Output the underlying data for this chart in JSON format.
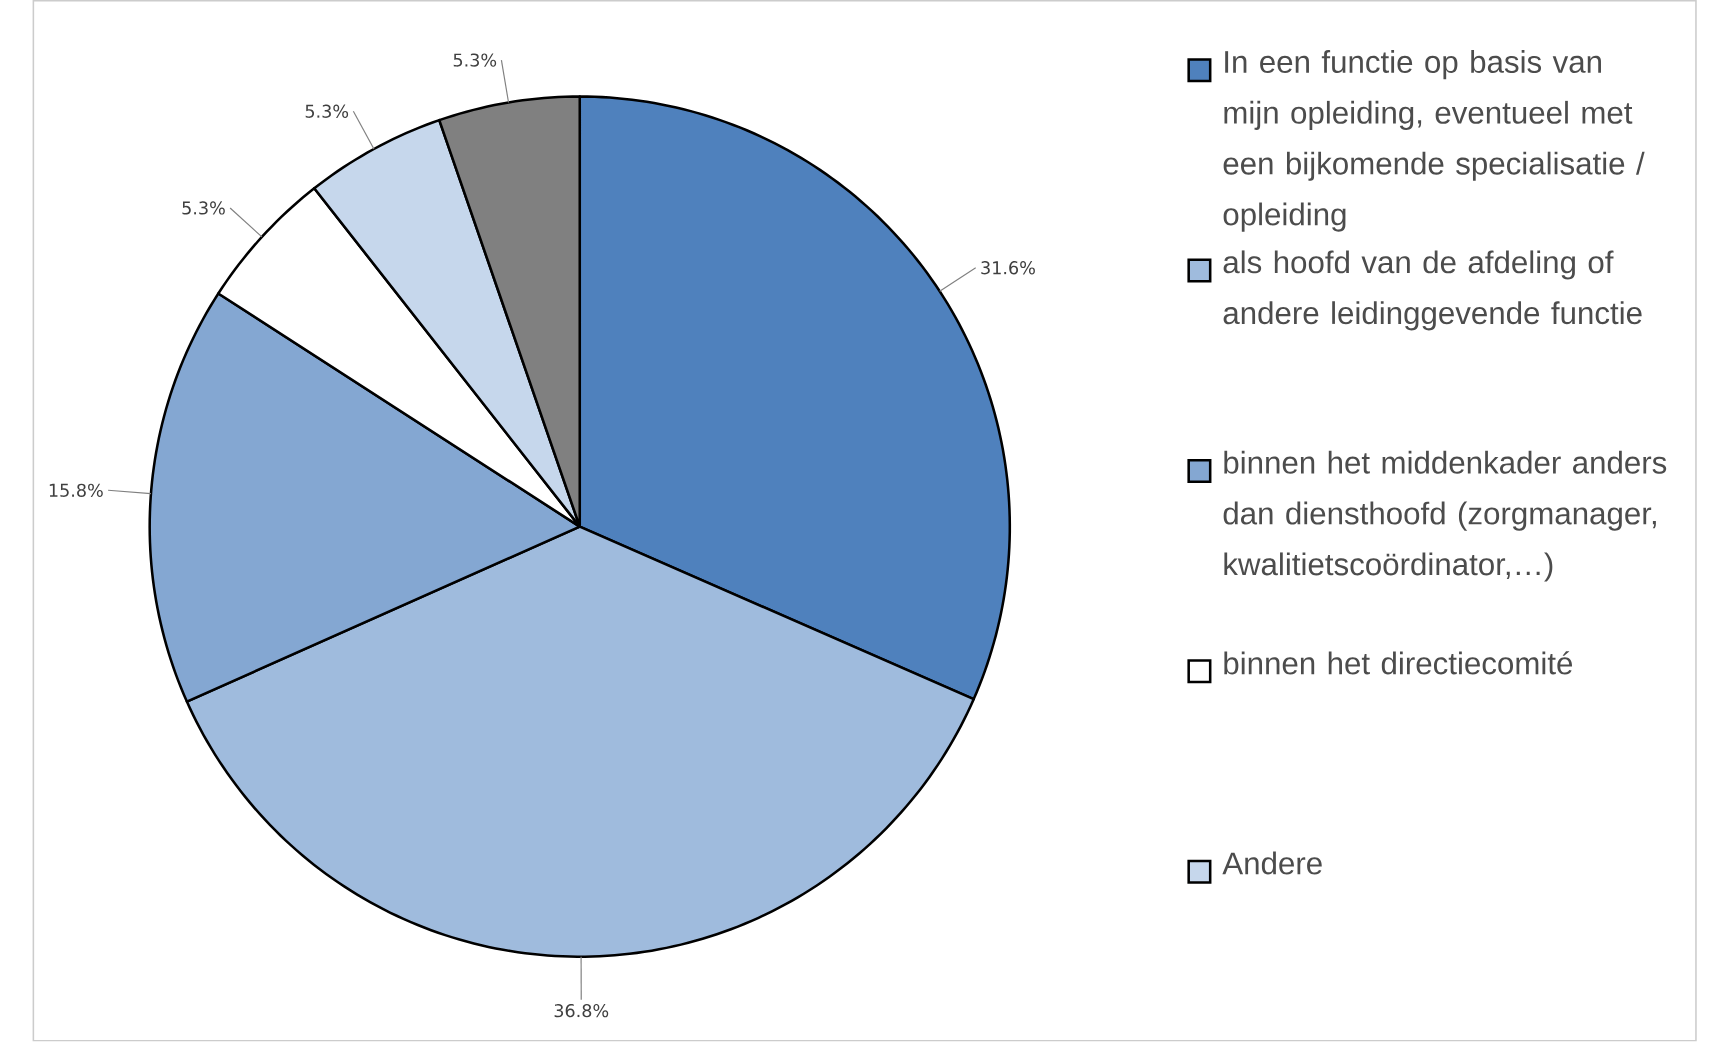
{
  "chart_data": {
    "type": "pie",
    "categories": [
      "In een functie op basis van mijn opleiding, eventueel met een bijkomende specialisatie / opleiding",
      "als hoofd van de afdeling of andere leidinggevende functie",
      "binnen het middenkader anders dan diensthoofd (zorgmanager, kwalitietscoördinator,…)",
      "binnen het directiecomité",
      "Andere",
      null
    ],
    "values": [
      31.6,
      36.8,
      15.8,
      5.3,
      5.3,
      5.3
    ],
    "value_labels": [
      "31.6%",
      "36.8%",
      "15.8%",
      "5.3%",
      "5.3%",
      "5.3%"
    ],
    "colors": [
      "#4f81bd",
      "#9fbbdd",
      "#84a7d2",
      "#ffffff",
      "#c6d7ec",
      "#808080"
    ],
    "legend": "right"
  }
}
